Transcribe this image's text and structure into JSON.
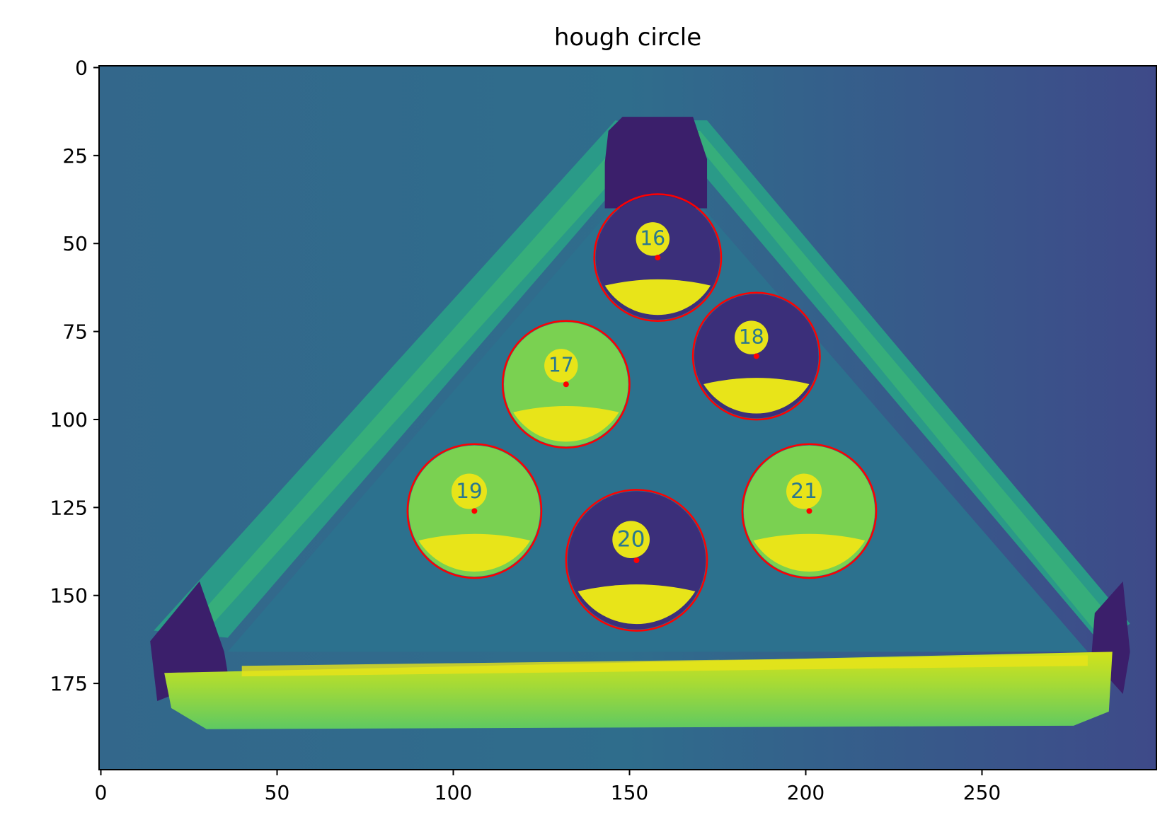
{
  "chart_data": {
    "type": "scatter",
    "title": "hough circle",
    "xlabel": "",
    "ylabel": "",
    "xlim": [
      -0.5,
      299.5
    ],
    "ylim": [
      199.5,
      -0.5
    ],
    "y_inverted": true,
    "xticks": [
      0,
      50,
      100,
      150,
      200,
      250
    ],
    "yticks": [
      0,
      25,
      50,
      75,
      100,
      125,
      150,
      175
    ],
    "grid": false,
    "background": "grayscale image rendered with viridis colormap: pool balls in a triangular rack",
    "circles": [
      {
        "label": "16",
        "cx": 158,
        "cy": 54,
        "r": 18
      },
      {
        "label": "18",
        "cx": 186,
        "cy": 82,
        "r": 18
      },
      {
        "label": "17",
        "cx": 132,
        "cy": 90,
        "r": 18
      },
      {
        "label": "19",
        "cx": 106,
        "cy": 126,
        "r": 19
      },
      {
        "label": "21",
        "cx": 201,
        "cy": 126,
        "r": 19
      },
      {
        "label": "20",
        "cx": 152,
        "cy": 140,
        "r": 20
      }
    ],
    "circle_color": "#ff0000",
    "center_color": "#ff0000"
  },
  "colors": {
    "felt": "#3b5e8c",
    "felt_dark": "#414487",
    "rail": "#2a9a88",
    "rail_light": "#bddf26",
    "yellow": "#e8e419",
    "purple": "#3b1f6b"
  }
}
